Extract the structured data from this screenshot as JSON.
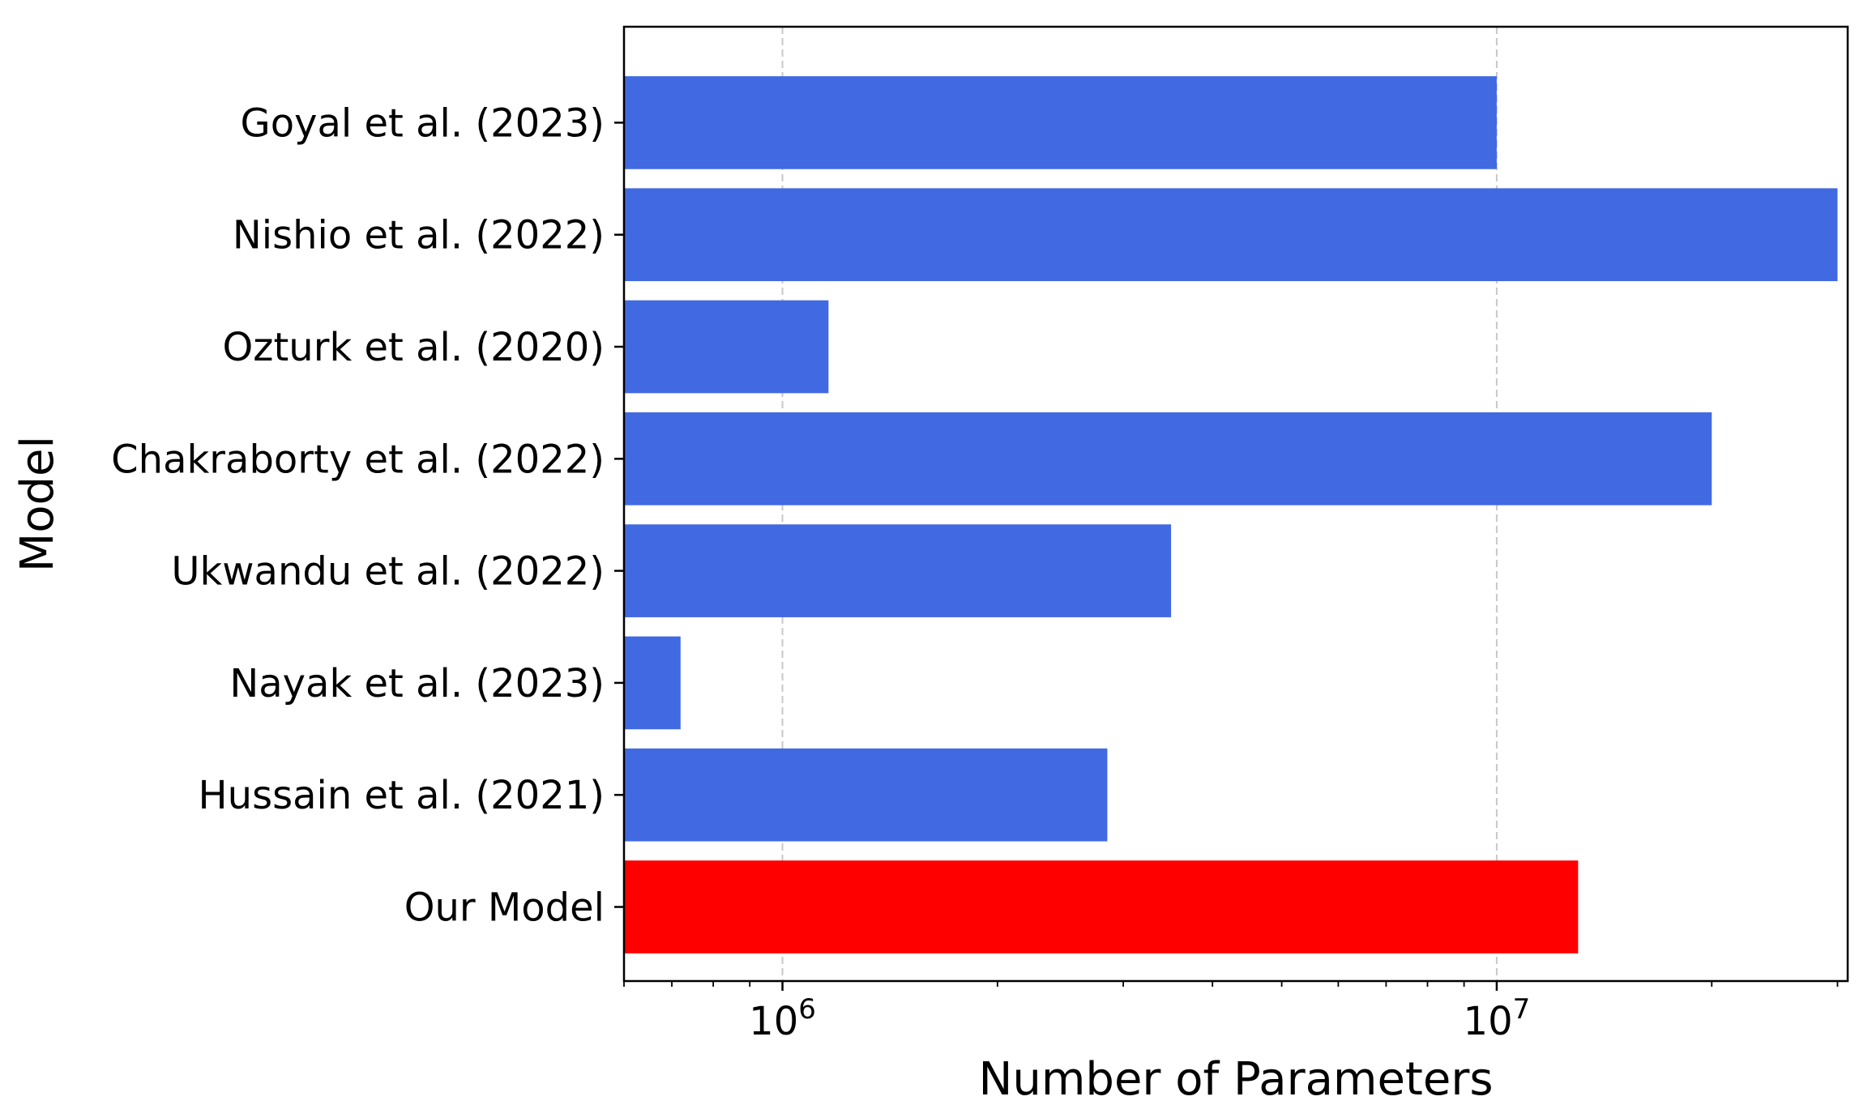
{
  "chart_data": {
    "type": "bar",
    "orientation": "horizontal",
    "title": "",
    "xlabel": "Number of Parameters",
    "ylabel": "Model",
    "xscale": "log",
    "xlim": [
      600000,
      31000000
    ],
    "x_tick_labels": [
      {
        "value": 1000000,
        "base": "10",
        "exp": "6"
      },
      {
        "value": 10000000,
        "base": "10",
        "exp": "7"
      }
    ],
    "grid": "x-major-dashed",
    "categories": [
      "Goyal et al. (2023)",
      "Nishio et al. (2022)",
      "Ozturk et al. (2020)",
      "Chakraborty et al. (2022)",
      "Ukwandu et al. (2022)",
      "Nayak et al. (2023)",
      "Hussain et al. (2021)",
      "Our Model"
    ],
    "values": [
      10000000,
      30000000,
      1160000,
      20000000,
      3500000,
      720000,
      2850000,
      13000000
    ],
    "colors": [
      "#4169e1",
      "#4169e1",
      "#4169e1",
      "#4169e1",
      "#4169e1",
      "#4169e1",
      "#4169e1",
      "#ff0000"
    ]
  }
}
